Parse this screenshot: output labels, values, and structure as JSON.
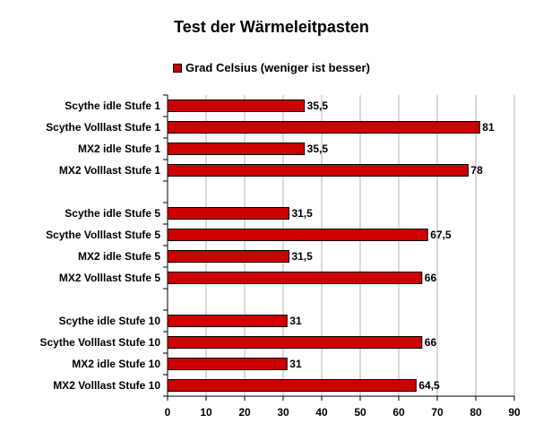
{
  "chart_data": {
    "type": "bar",
    "orientation": "horizontal",
    "title": "Test der Wärmeleitpasten",
    "legend": {
      "position": "top",
      "entries": [
        "Grad Celsius (weniger ist besser)"
      ]
    },
    "series": [
      {
        "name": "Grad Celsius (weniger ist besser)",
        "color": "#cc0000",
        "values": [
          35.5,
          81,
          35.5,
          78,
          31.5,
          67.5,
          31.5,
          66,
          31,
          66,
          31,
          64.5
        ],
        "value_labels": [
          "35,5",
          "81",
          "35,5",
          "78",
          "31,5",
          "67,5",
          "31,5",
          "66",
          "31",
          "66",
          "31",
          "64,5"
        ]
      }
    ],
    "categories": [
      "Scythe idle Stufe 1",
      "Scythe Volllast Stufe 1",
      "MX2 idle Stufe 1",
      "MX2 Volllast Stufe 1",
      "Scythe idle Stufe 5",
      "Scythe Volllast Stufe 5",
      "MX2 idle Stufe 5",
      "MX2 Volllast Stufe 5",
      "Scythe idle Stufe 10",
      "Scythe Volllast Stufe 10",
      "MX2 idle Stufe 10",
      "MX2 Volllast Stufe 10"
    ],
    "groups": [
      [
        0,
        1,
        2,
        3
      ],
      [
        4,
        5,
        6,
        7
      ],
      [
        8,
        9,
        10,
        11
      ]
    ],
    "xlim": [
      0,
      90
    ],
    "xticks": [
      0,
      10,
      20,
      30,
      40,
      50,
      60,
      70,
      80,
      90
    ],
    "grid": "vertical",
    "xlabel": "",
    "ylabel": ""
  }
}
